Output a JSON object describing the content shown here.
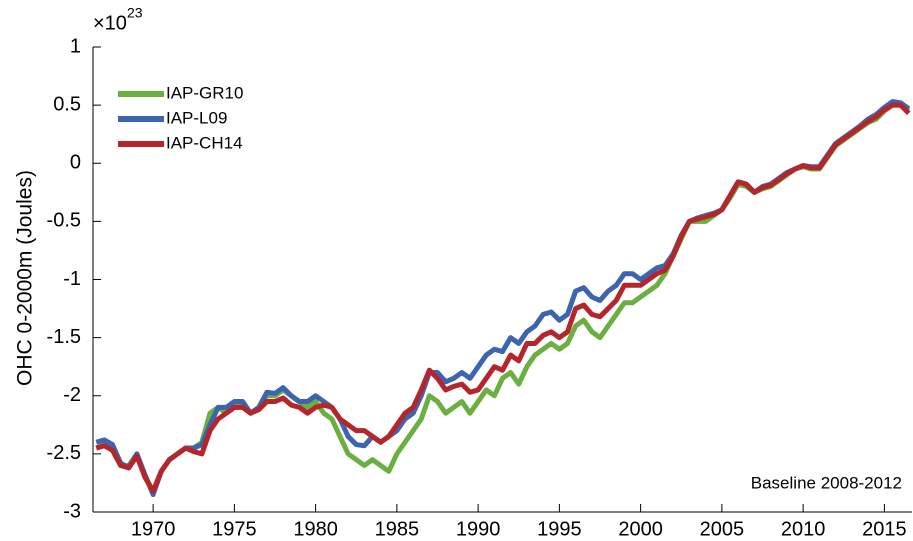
{
  "chart_data": {
    "type": "line",
    "ylabel": "OHC 0-2000m (Joules)",
    "y_multiplier": {
      "base": "×10",
      "exponent": "23"
    },
    "annotation": "Baseline 2008-2012",
    "legend": "upper-left",
    "xlim": [
      1966.3,
      2016.7
    ],
    "xticks": [
      1970,
      1975,
      1980,
      1985,
      1990,
      1995,
      2000,
      2005,
      2010,
      2015
    ],
    "ylim": [
      -3,
      1
    ],
    "yticks": [
      -3,
      -2.5,
      -2,
      -1.5,
      -1,
      -0.5,
      0,
      0.5,
      1
    ],
    "grid": false,
    "x": [
      1966.5,
      1967,
      1967.5,
      1968,
      1968.5,
      1969,
      1969.5,
      1970,
      1970.5,
      1971,
      1971.5,
      1972,
      1972.5,
      1973,
      1973.5,
      1974,
      1974.5,
      1975,
      1975.5,
      1976,
      1976.5,
      1977,
      1977.5,
      1978,
      1978.5,
      1979,
      1979.5,
      1980,
      1980.5,
      1981,
      1981.5,
      1982,
      1982.5,
      1983,
      1983.5,
      1984,
      1984.5,
      1985,
      1985.5,
      1986,
      1986.5,
      1987,
      1987.5,
      1988,
      1988.5,
      1989,
      1989.5,
      1990,
      1990.5,
      1991,
      1991.5,
      1992,
      1992.5,
      1993,
      1993.5,
      1994,
      1994.5,
      1995,
      1995.5,
      1996,
      1996.5,
      1997,
      1997.5,
      1998,
      1998.5,
      1999,
      1999.5,
      2000,
      2000.5,
      2001,
      2001.5,
      2002,
      2002.5,
      2003,
      2003.5,
      2004,
      2004.5,
      2005,
      2005.5,
      2006,
      2006.5,
      2007,
      2007.5,
      2008,
      2008.5,
      2009,
      2009.5,
      2010,
      2010.5,
      2011,
      2011.5,
      2012,
      2012.5,
      2013,
      2013.5,
      2014,
      2014.5,
      2015,
      2015.5,
      2016,
      2016.5
    ],
    "series": [
      {
        "name": "IAP-GR10",
        "color": "#6aaf3f",
        "values": [
          -2.45,
          -2.42,
          -2.45,
          -2.6,
          -2.6,
          -2.5,
          -2.7,
          -2.83,
          -2.65,
          -2.55,
          -2.5,
          -2.45,
          -2.45,
          -2.4,
          -2.15,
          -2.1,
          -2.15,
          -2.1,
          -2.05,
          -2.15,
          -2.1,
          -2.0,
          -2.0,
          -1.95,
          -2.0,
          -2.05,
          -2.1,
          -2.05,
          -2.15,
          -2.2,
          -2.35,
          -2.5,
          -2.55,
          -2.6,
          -2.55,
          -2.6,
          -2.65,
          -2.5,
          -2.4,
          -2.3,
          -2.2,
          -2.0,
          -2.05,
          -2.15,
          -2.1,
          -2.05,
          -2.15,
          -2.05,
          -1.95,
          -2.0,
          -1.85,
          -1.8,
          -1.9,
          -1.75,
          -1.65,
          -1.6,
          -1.55,
          -1.6,
          -1.55,
          -1.4,
          -1.35,
          -1.45,
          -1.5,
          -1.4,
          -1.3,
          -1.2,
          -1.2,
          -1.15,
          -1.1,
          -1.05,
          -0.95,
          -0.8,
          -0.65,
          -0.5,
          -0.5,
          -0.5,
          -0.45,
          -0.4,
          -0.3,
          -0.18,
          -0.2,
          -0.25,
          -0.22,
          -0.2,
          -0.15,
          -0.1,
          -0.05,
          -0.03,
          -0.05,
          -0.05,
          0.05,
          0.15,
          0.2,
          0.25,
          0.3,
          0.35,
          0.38,
          0.45,
          0.5,
          0.5,
          0.45
        ]
      },
      {
        "name": "IAP-L09",
        "color": "#3c64b0",
        "values": [
          -2.4,
          -2.38,
          -2.42,
          -2.58,
          -2.62,
          -2.5,
          -2.68,
          -2.85,
          -2.65,
          -2.55,
          -2.5,
          -2.45,
          -2.45,
          -2.42,
          -2.25,
          -2.1,
          -2.1,
          -2.05,
          -2.05,
          -2.15,
          -2.1,
          -1.97,
          -1.98,
          -1.93,
          -2.0,
          -2.05,
          -2.05,
          -2.0,
          -2.05,
          -2.1,
          -2.2,
          -2.35,
          -2.42,
          -2.43,
          -2.35,
          -2.4,
          -2.35,
          -2.3,
          -2.2,
          -2.15,
          -2.0,
          -1.8,
          -1.8,
          -1.88,
          -1.85,
          -1.8,
          -1.85,
          -1.75,
          -1.65,
          -1.6,
          -1.62,
          -1.5,
          -1.55,
          -1.45,
          -1.4,
          -1.3,
          -1.28,
          -1.35,
          -1.3,
          -1.1,
          -1.07,
          -1.15,
          -1.18,
          -1.1,
          -1.05,
          -0.95,
          -0.95,
          -1.0,
          -0.95,
          -0.9,
          -0.88,
          -0.78,
          -0.62,
          -0.5,
          -0.47,
          -0.45,
          -0.43,
          -0.4,
          -0.28,
          -0.16,
          -0.18,
          -0.25,
          -0.2,
          -0.18,
          -0.13,
          -0.08,
          -0.05,
          -0.02,
          -0.03,
          -0.03,
          0.07,
          0.17,
          0.22,
          0.27,
          0.32,
          0.38,
          0.42,
          0.48,
          0.53,
          0.52,
          0.47
        ]
      },
      {
        "name": "IAP-CH14",
        "color": "#b5262c",
        "values": [
          -2.45,
          -2.43,
          -2.47,
          -2.6,
          -2.62,
          -2.52,
          -2.7,
          -2.82,
          -2.65,
          -2.55,
          -2.5,
          -2.45,
          -2.48,
          -2.5,
          -2.3,
          -2.2,
          -2.15,
          -2.1,
          -2.1,
          -2.15,
          -2.12,
          -2.05,
          -2.05,
          -2.02,
          -2.08,
          -2.1,
          -2.15,
          -2.1,
          -2.08,
          -2.1,
          -2.2,
          -2.25,
          -2.3,
          -2.3,
          -2.35,
          -2.4,
          -2.35,
          -2.25,
          -2.15,
          -2.1,
          -1.95,
          -1.78,
          -1.85,
          -1.95,
          -1.92,
          -1.9,
          -1.97,
          -1.95,
          -1.85,
          -1.75,
          -1.78,
          -1.65,
          -1.7,
          -1.55,
          -1.55,
          -1.48,
          -1.45,
          -1.5,
          -1.45,
          -1.25,
          -1.22,
          -1.3,
          -1.32,
          -1.25,
          -1.18,
          -1.05,
          -1.05,
          -1.05,
          -1.0,
          -0.95,
          -0.92,
          -0.8,
          -0.63,
          -0.5,
          -0.48,
          -0.46,
          -0.44,
          -0.4,
          -0.28,
          -0.16,
          -0.18,
          -0.25,
          -0.21,
          -0.19,
          -0.14,
          -0.09,
          -0.05,
          -0.02,
          -0.04,
          -0.04,
          0.06,
          0.16,
          0.21,
          0.26,
          0.31,
          0.36,
          0.4,
          0.46,
          0.5,
          0.5,
          0.43
        ]
      }
    ]
  }
}
